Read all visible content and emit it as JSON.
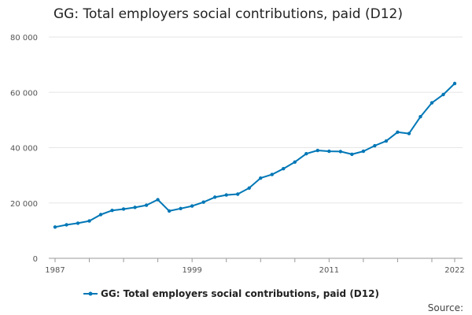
{
  "chart_data": {
    "type": "line",
    "title": "GG: Total employers social contributions, paid (D12)",
    "source_label": "Source:",
    "series": [
      {
        "name": "GG: Total employers social contributions, paid (D12)",
        "color": "#0077b6",
        "values": [
          11300,
          12100,
          12700,
          13500,
          15800,
          17300,
          17800,
          18400,
          19200,
          21200,
          17100,
          18000,
          18900,
          20300,
          22100,
          22900,
          23200,
          25400,
          29000,
          30300,
          32400,
          34800,
          37800,
          39000,
          38700,
          38600,
          37600,
          38700,
          40700,
          42400,
          45600,
          45100,
          51200,
          56200,
          59200,
          63200
        ]
      }
    ],
    "x": [
      1987,
      1988,
      1989,
      1990,
      1991,
      1992,
      1993,
      1994,
      1995,
      1996,
      1997,
      1998,
      1999,
      2000,
      2001,
      2002,
      2003,
      2004,
      2005,
      2006,
      2007,
      2008,
      2009,
      2010,
      2011,
      2012,
      2013,
      2014,
      2015,
      2016,
      2017,
      2018,
      2019,
      2020,
      2021,
      2022
    ],
    "xlim": [
      1987,
      2022
    ],
    "x_tick_labels": [
      "1987",
      "1999",
      "2011",
      "2022"
    ],
    "x_tick_values": [
      1987,
      1999,
      2011,
      2022
    ],
    "ylim": [
      0,
      80000
    ],
    "y_tick_values": [
      0,
      20000,
      40000,
      60000,
      80000
    ],
    "y_tick_labels": [
      "0",
      "20 000",
      "40 000",
      "60 000",
      "80 000"
    ],
    "grid": true,
    "legend_position": "bottom"
  }
}
